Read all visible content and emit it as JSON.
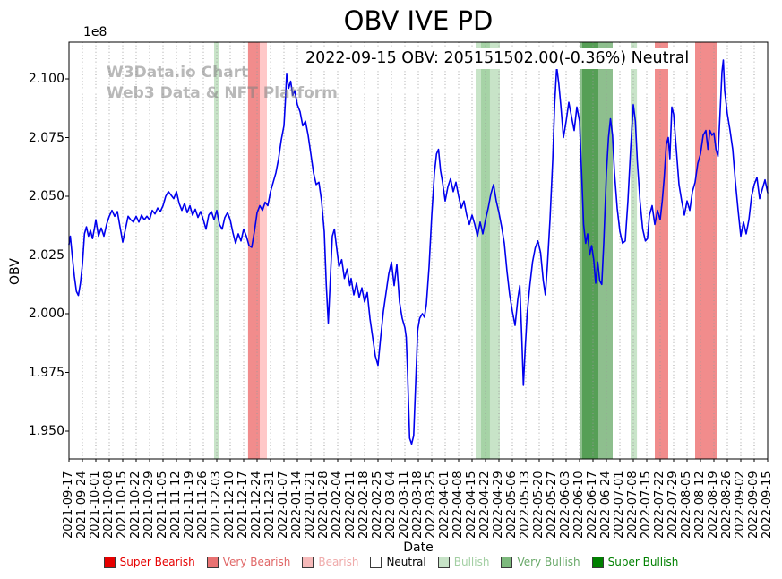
{
  "annotation": "2022-09-15 OBV: 205151502.00(-0.36%) Neutral",
  "watermark": {
    "line1": "W3Data.io Chart",
    "line2": "Web3 Data & NFT Platform"
  },
  "chart_data": {
    "type": "line",
    "title": "OBV IVE PD",
    "xlabel": "Date",
    "ylabel": "OBV",
    "y_offset_label": "1e8",
    "series_name": "OBV",
    "line_color": "#0000ee",
    "grid": "vertical-dotted",
    "legend_position": "bottom-center",
    "ylim": [
      1.938,
      2.1155
    ],
    "y_ticks": [
      "1.950",
      "1.975",
      "2.000",
      "2.025",
      "2.050",
      "2.075",
      "2.100"
    ],
    "x_ticks": [
      "2021-09-17",
      "2021-09-24",
      "2021-10-01",
      "2021-10-08",
      "2021-10-15",
      "2021-10-22",
      "2021-10-29",
      "2021-11-05",
      "2021-11-12",
      "2021-11-19",
      "2021-11-26",
      "2021-12-03",
      "2021-12-10",
      "2021-12-17",
      "2021-12-24",
      "2021-12-31",
      "2022-01-07",
      "2022-01-14",
      "2022-01-21",
      "2022-01-28",
      "2022-02-04",
      "2022-02-11",
      "2022-02-18",
      "2022-02-25",
      "2022-03-04",
      "2022-03-11",
      "2022-03-18",
      "2022-03-25",
      "2022-04-01",
      "2022-04-08",
      "2022-04-15",
      "2022-04-22",
      "2022-04-29",
      "2022-05-06",
      "2022-05-13",
      "2022-05-20",
      "2022-05-27",
      "2022-06-03",
      "2022-06-10",
      "2022-06-17",
      "2022-06-24",
      "2022-07-01",
      "2022-07-08",
      "2022-07-15",
      "2022-07-22",
      "2022-07-29",
      "2022-08-05",
      "2022-08-12",
      "2022-08-19",
      "2022-08-26",
      "2022-09-02",
      "2022-09-09",
      "2022-09-15"
    ],
    "band_colors": {
      "bearish": "rgba(255,110,110,0.38)",
      "very_bearish": "rgba(229,45,45,0.55)",
      "bullish": "rgba(110,185,110,0.38)",
      "very_bullish": "rgba(30,128,30,0.5)"
    },
    "bands": [
      {
        "start": 10.8,
        "end": 11.13,
        "level": "bullish"
      },
      {
        "start": 13.33,
        "end": 14.2,
        "level": "very_bearish"
      },
      {
        "start": 14.2,
        "end": 14.73,
        "level": "bearish"
      },
      {
        "start": 30.27,
        "end": 32.07,
        "level": "bullish"
      },
      {
        "start": 30.67,
        "end": 31.33,
        "level": "bullish"
      },
      {
        "start": 38.07,
        "end": 40.47,
        "level": "very_bullish"
      },
      {
        "start": 38.2,
        "end": 39.4,
        "level": "very_bullish"
      },
      {
        "start": 41.8,
        "end": 42.27,
        "level": "bullish"
      },
      {
        "start": 43.6,
        "end": 44.6,
        "level": "very_bearish"
      },
      {
        "start": 46.6,
        "end": 48.2,
        "level": "very_bearish"
      }
    ],
    "line": [
      [
        0,
        2.0295
      ],
      [
        0.1,
        2.033
      ],
      [
        0.25,
        2.024
      ],
      [
        0.4,
        2.016
      ],
      [
        0.55,
        2.0095
      ],
      [
        0.7,
        2.0078
      ],
      [
        0.85,
        2.013
      ],
      [
        1,
        2.021
      ],
      [
        1.15,
        2.034
      ],
      [
        1.3,
        2.037
      ],
      [
        1.45,
        2.033
      ],
      [
        1.6,
        2.0355
      ],
      [
        1.75,
        2.032
      ],
      [
        1.9,
        2.0365
      ],
      [
        2,
        2.04
      ],
      [
        2.2,
        2.033
      ],
      [
        2.4,
        2.0365
      ],
      [
        2.6,
        2.033
      ],
      [
        2.8,
        2.038
      ],
      [
        3,
        2.0415
      ],
      [
        3.2,
        2.044
      ],
      [
        3.4,
        2.0415
      ],
      [
        3.6,
        2.0435
      ],
      [
        3.8,
        2.037
      ],
      [
        4,
        2.0305
      ],
      [
        4.2,
        2.036
      ],
      [
        4.4,
        2.0415
      ],
      [
        4.6,
        2.04
      ],
      [
        4.8,
        2.039
      ],
      [
        5,
        2.0415
      ],
      [
        5.2,
        2.039
      ],
      [
        5.4,
        2.042
      ],
      [
        5.6,
        2.04
      ],
      [
        5.8,
        2.0415
      ],
      [
        6,
        2.04
      ],
      [
        6.2,
        2.044
      ],
      [
        6.4,
        2.0425
      ],
      [
        6.6,
        2.045
      ],
      [
        6.8,
        2.0435
      ],
      [
        7,
        2.046
      ],
      [
        7.2,
        2.05
      ],
      [
        7.4,
        2.052
      ],
      [
        7.6,
        2.0505
      ],
      [
        7.8,
        2.049
      ],
      [
        8,
        2.052
      ],
      [
        8.2,
        2.047
      ],
      [
        8.4,
        2.044
      ],
      [
        8.6,
        2.047
      ],
      [
        8.8,
        2.043
      ],
      [
        9,
        2.046
      ],
      [
        9.2,
        2.042
      ],
      [
        9.4,
        2.0445
      ],
      [
        9.6,
        2.041
      ],
      [
        9.8,
        2.0435
      ],
      [
        10,
        2.04
      ],
      [
        10.2,
        2.036
      ],
      [
        10.4,
        2.042
      ],
      [
        10.6,
        2.0435
      ],
      [
        10.8,
        2.04
      ],
      [
        11,
        2.044
      ],
      [
        11.2,
        2.038
      ],
      [
        11.4,
        2.036
      ],
      [
        11.6,
        2.041
      ],
      [
        11.8,
        2.043
      ],
      [
        12,
        2.04
      ],
      [
        12.2,
        2.0345
      ],
      [
        12.4,
        2.03
      ],
      [
        12.6,
        2.034
      ],
      [
        12.8,
        2.031
      ],
      [
        13,
        2.036
      ],
      [
        13.2,
        2.033
      ],
      [
        13.4,
        2.029
      ],
      [
        13.6,
        2.0283
      ],
      [
        13.8,
        2.035
      ],
      [
        14,
        2.043
      ],
      [
        14.2,
        2.046
      ],
      [
        14.4,
        2.044
      ],
      [
        14.6,
        2.0475
      ],
      [
        14.8,
        2.046
      ],
      [
        15,
        2.052
      ],
      [
        15.2,
        2.056
      ],
      [
        15.4,
        2.06
      ],
      [
        15.6,
        2.066
      ],
      [
        15.8,
        2.074
      ],
      [
        16,
        2.08
      ],
      [
        16.1,
        2.09
      ],
      [
        16.2,
        2.102
      ],
      [
        16.35,
        2.096
      ],
      [
        16.5,
        2.099
      ],
      [
        16.65,
        2.093
      ],
      [
        16.8,
        2.095
      ],
      [
        17,
        2.089
      ],
      [
        17.2,
        2.086
      ],
      [
        17.4,
        2.08
      ],
      [
        17.6,
        2.082
      ],
      [
        17.8,
        2.076
      ],
      [
        18,
        2.068
      ],
      [
        18.2,
        2.06
      ],
      [
        18.4,
        2.055
      ],
      [
        18.6,
        2.056
      ],
      [
        18.8,
        2.048
      ],
      [
        19,
        2.035
      ],
      [
        19.15,
        2.012
      ],
      [
        19.3,
        1.996
      ],
      [
        19.45,
        2.015
      ],
      [
        19.6,
        2.033
      ],
      [
        19.75,
        2.036
      ],
      [
        19.9,
        2.029
      ],
      [
        20.1,
        2.02
      ],
      [
        20.3,
        2.023
      ],
      [
        20.5,
        2.015
      ],
      [
        20.7,
        2.019
      ],
      [
        20.9,
        2.012
      ],
      [
        21,
        2.015
      ],
      [
        21.2,
        2.008
      ],
      [
        21.4,
        2.013
      ],
      [
        21.6,
        2.007
      ],
      [
        21.8,
        2.011
      ],
      [
        22,
        2.005
      ],
      [
        22.2,
        2.009
      ],
      [
        22.4,
        1.998
      ],
      [
        22.6,
        1.99
      ],
      [
        22.8,
        1.982
      ],
      [
        23,
        1.978
      ],
      [
        23.2,
        1.99
      ],
      [
        23.4,
        2.001
      ],
      [
        23.6,
        2.009
      ],
      [
        23.8,
        2.017
      ],
      [
        24,
        2.022
      ],
      [
        24.2,
        2.012
      ],
      [
        24.4,
        2.021
      ],
      [
        24.6,
        2.005
      ],
      [
        24.8,
        1.998
      ],
      [
        25,
        1.994
      ],
      [
        25.1,
        1.99
      ],
      [
        25.2,
        1.975
      ],
      [
        25.35,
        1.947
      ],
      [
        25.5,
        1.9445
      ],
      [
        25.65,
        1.948
      ],
      [
        25.8,
        1.97
      ],
      [
        25.95,
        1.993
      ],
      [
        26.1,
        1.998
      ],
      [
        26.3,
        2.0
      ],
      [
        26.45,
        1.9985
      ],
      [
        26.6,
        2.004
      ],
      [
        26.8,
        2.02
      ],
      [
        27,
        2.042
      ],
      [
        27.2,
        2.06
      ],
      [
        27.35,
        2.068
      ],
      [
        27.5,
        2.07
      ],
      [
        27.65,
        2.061
      ],
      [
        27.8,
        2.056
      ],
      [
        28,
        2.048
      ],
      [
        28.2,
        2.054
      ],
      [
        28.4,
        2.0575
      ],
      [
        28.6,
        2.052
      ],
      [
        28.8,
        2.056
      ],
      [
        29,
        2.05
      ],
      [
        29.2,
        2.045
      ],
      [
        29.4,
        2.048
      ],
      [
        29.6,
        2.042
      ],
      [
        29.8,
        2.038
      ],
      [
        30,
        2.042
      ],
      [
        30.2,
        2.038
      ],
      [
        30.4,
        2.033
      ],
      [
        30.6,
        2.039
      ],
      [
        30.8,
        2.034
      ],
      [
        31,
        2.04
      ],
      [
        31.2,
        2.045
      ],
      [
        31.4,
        2.051
      ],
      [
        31.6,
        2.055
      ],
      [
        31.8,
        2.048
      ],
      [
        32,
        2.043
      ],
      [
        32.2,
        2.037
      ],
      [
        32.4,
        2.03
      ],
      [
        32.6,
        2.018
      ],
      [
        32.8,
        2.008
      ],
      [
        33,
        2.001
      ],
      [
        33.2,
        1.995
      ],
      [
        33.4,
        2.006
      ],
      [
        33.55,
        2.012
      ],
      [
        33.7,
        1.99
      ],
      [
        33.82,
        1.9695
      ],
      [
        33.95,
        1.985
      ],
      [
        34.1,
        2.0
      ],
      [
        34.3,
        2.012
      ],
      [
        34.5,
        2.022
      ],
      [
        34.7,
        2.028
      ],
      [
        34.9,
        2.031
      ],
      [
        35.1,
        2.026
      ],
      [
        35.3,
        2.014
      ],
      [
        35.45,
        2.008
      ],
      [
        35.6,
        2.02
      ],
      [
        35.8,
        2.04
      ],
      [
        36,
        2.065
      ],
      [
        36.15,
        2.09
      ],
      [
        36.3,
        2.105
      ],
      [
        36.45,
        2.098
      ],
      [
        36.6,
        2.089
      ],
      [
        36.8,
        2.075
      ],
      [
        37,
        2.082
      ],
      [
        37.2,
        2.09
      ],
      [
        37.4,
        2.084
      ],
      [
        37.6,
        2.078
      ],
      [
        37.8,
        2.088
      ],
      [
        38,
        2.082
      ],
      [
        38.15,
        2.06
      ],
      [
        38.3,
        2.038
      ],
      [
        38.45,
        2.03
      ],
      [
        38.6,
        2.034
      ],
      [
        38.75,
        2.025
      ],
      [
        38.9,
        2.029
      ],
      [
        39.05,
        2.023
      ],
      [
        39.2,
        2.013
      ],
      [
        39.35,
        2.022
      ],
      [
        39.5,
        2.014
      ],
      [
        39.65,
        2.0125
      ],
      [
        39.8,
        2.03
      ],
      [
        40,
        2.06
      ],
      [
        40.15,
        2.075
      ],
      [
        40.3,
        2.083
      ],
      [
        40.45,
        2.076
      ],
      [
        40.6,
        2.06
      ],
      [
        40.8,
        2.045
      ],
      [
        41,
        2.035
      ],
      [
        41.2,
        2.03
      ],
      [
        41.4,
        2.031
      ],
      [
        41.6,
        2.048
      ],
      [
        41.8,
        2.07
      ],
      [
        42,
        2.089
      ],
      [
        42.15,
        2.082
      ],
      [
        42.3,
        2.065
      ],
      [
        42.5,
        2.048
      ],
      [
        42.7,
        2.036
      ],
      [
        42.9,
        2.031
      ],
      [
        43.05,
        2.032
      ],
      [
        43.2,
        2.042
      ],
      [
        43.4,
        2.046
      ],
      [
        43.6,
        2.038
      ],
      [
        43.8,
        2.044
      ],
      [
        44,
        2.04
      ],
      [
        44.15,
        2.048
      ],
      [
        44.3,
        2.058
      ],
      [
        44.45,
        2.072
      ],
      [
        44.6,
        2.075
      ],
      [
        44.72,
        2.066
      ],
      [
        44.87,
        2.088
      ],
      [
        45,
        2.085
      ],
      [
        45.2,
        2.07
      ],
      [
        45.4,
        2.055
      ],
      [
        45.6,
        2.048
      ],
      [
        45.8,
        2.042
      ],
      [
        46,
        2.048
      ],
      [
        46.2,
        2.044
      ],
      [
        46.4,
        2.052
      ],
      [
        46.6,
        2.056
      ],
      [
        46.8,
        2.064
      ],
      [
        47,
        2.068
      ],
      [
        47.2,
        2.076
      ],
      [
        47.4,
        2.078
      ],
      [
        47.55,
        2.07
      ],
      [
        47.7,
        2.078
      ],
      [
        47.85,
        2.076
      ],
      [
        48,
        2.077
      ],
      [
        48.15,
        2.07
      ],
      [
        48.3,
        2.067
      ],
      [
        48.45,
        2.085
      ],
      [
        48.6,
        2.103
      ],
      [
        48.7,
        2.108
      ],
      [
        48.8,
        2.095
      ],
      [
        49,
        2.085
      ],
      [
        49.2,
        2.078
      ],
      [
        49.4,
        2.07
      ],
      [
        49.6,
        2.056
      ],
      [
        49.8,
        2.044
      ],
      [
        50,
        2.033
      ],
      [
        50.2,
        2.039
      ],
      [
        50.4,
        2.034
      ],
      [
        50.6,
        2.04
      ],
      [
        50.8,
        2.05
      ],
      [
        51,
        2.055
      ],
      [
        51.2,
        2.058
      ],
      [
        51.4,
        2.049
      ],
      [
        51.6,
        2.053
      ],
      [
        51.8,
        2.057
      ],
      [
        52,
        2.0515
      ]
    ],
    "legend": [
      {
        "label": "Super Bearish",
        "color": "#e60000",
        "text_color": "#e60000"
      },
      {
        "label": "Very Bearish",
        "color": "#e87272",
        "text_color": "#e06666"
      },
      {
        "label": "Bearish",
        "color": "#f6baba",
        "text_color": "#efaaaa"
      },
      {
        "label": "Neutral",
        "color": "#ffffff",
        "text_color": "#000000"
      },
      {
        "label": "Bullish",
        "color": "#c7e3c7",
        "text_color": "#a3cfa3"
      },
      {
        "label": "Very Bullish",
        "color": "#7db97d",
        "text_color": "#6aa96a"
      },
      {
        "label": "Super Bullish",
        "color": "#008000",
        "text_color": "#008000"
      }
    ]
  }
}
